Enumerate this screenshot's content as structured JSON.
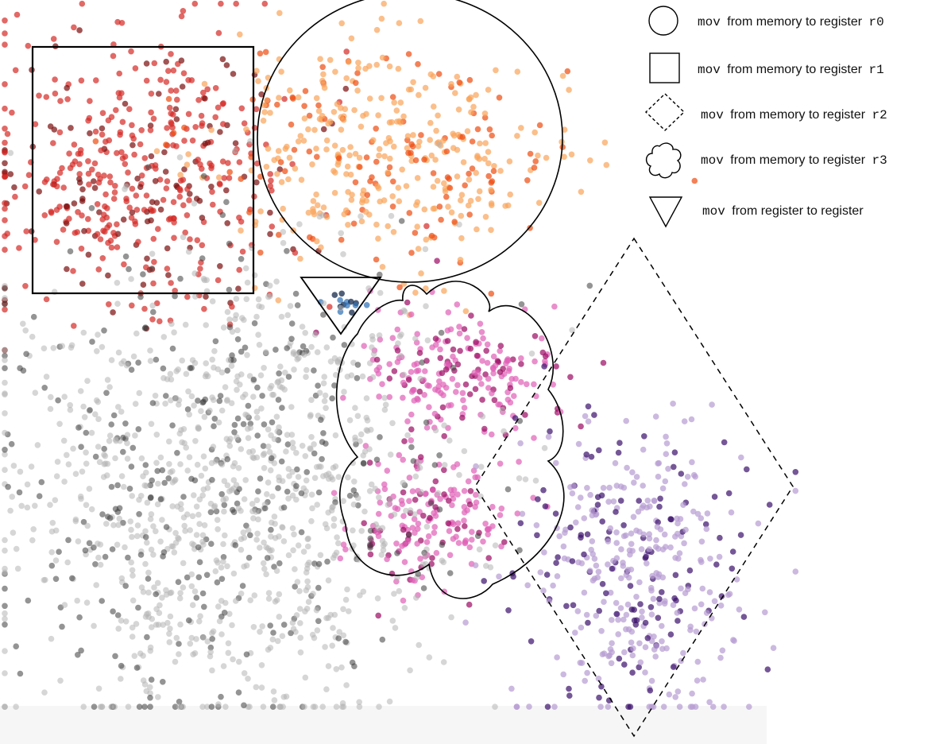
{
  "chart_data": {
    "type": "scatter",
    "title": "",
    "xlabel": "",
    "ylabel": "",
    "grid": false,
    "axes_visible": false,
    "legend_position": "top-right",
    "legend": [
      {
        "shape": "circle",
        "code": "mov",
        "text": "from memory to register",
        "reg": "r0"
      },
      {
        "shape": "square",
        "code": "mov",
        "text": "from memory to register",
        "reg": "r1"
      },
      {
        "shape": "diamond",
        "code": "mov",
        "text": "from memory to register",
        "reg": "r2"
      },
      {
        "shape": "cloud",
        "code": "mov",
        "text": "from memory to register",
        "reg": "r3"
      },
      {
        "shape": "triangle",
        "code": "mov",
        "text": "from register to register",
        "reg": ""
      }
    ],
    "series": [
      {
        "cluster": "r1-square",
        "color_light": "#d42a25",
        "color_dark": "#7a0d0d",
        "cx": 0.15,
        "cy": 0.23,
        "sx": 0.085,
        "sy": 0.095,
        "count": 460
      },
      {
        "cluster": "r0-circle",
        "color_light": "#f9a45a",
        "color_dark": "#ee4c10",
        "cx": 0.41,
        "cy": 0.2,
        "sx": 0.095,
        "sy": 0.075,
        "count": 430
      },
      {
        "cluster": "r3-cloud-a",
        "color_light": "#df60b6",
        "color_dark": "#9b0a62",
        "cx": 0.48,
        "cy": 0.5,
        "sx": 0.055,
        "sy": 0.045,
        "count": 220
      },
      {
        "cluster": "r3-cloud-b",
        "color_light": "#df60b6",
        "color_dark": "#9b0a62",
        "cx": 0.45,
        "cy": 0.7,
        "sx": 0.045,
        "sy": 0.045,
        "count": 180
      },
      {
        "cluster": "r2-diamond",
        "color_light": "#b79bd1",
        "color_dark": "#3b0f6b",
        "cx": 0.67,
        "cy": 0.76,
        "sx": 0.06,
        "sy": 0.1,
        "count": 420
      },
      {
        "cluster": "reg-triangle",
        "color_light": "#2b6fb6",
        "color_dark": "#051b3d",
        "cx": 0.365,
        "cy": 0.41,
        "sx": 0.012,
        "sy": 0.008,
        "count": 14
      },
      {
        "cluster": "other-gray",
        "color_light": "#b4b4b4",
        "color_dark": "#3c3c3c",
        "cx": 0.24,
        "cy": 0.66,
        "sx": 0.12,
        "sy": 0.16,
        "count": 1300
      }
    ]
  }
}
